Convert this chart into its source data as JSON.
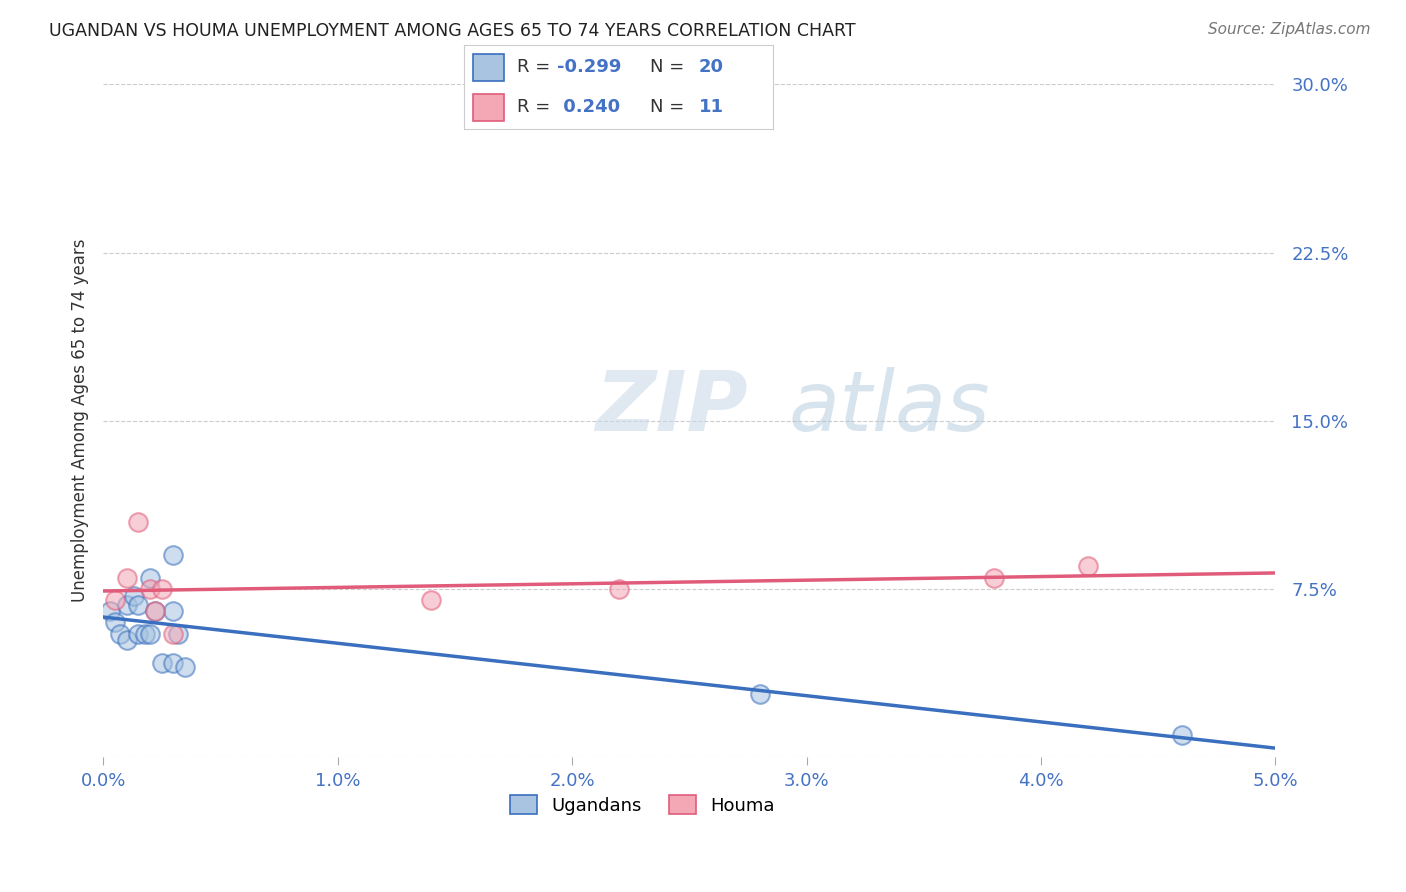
{
  "title": "UGANDAN VS HOUMA UNEMPLOYMENT AMONG AGES 65 TO 74 YEARS CORRELATION CHART",
  "source": "Source: ZipAtlas.com",
  "ylabel": "Unemployment Among Ages 65 to 74 years",
  "xlim": [
    0.0,
    0.05
  ],
  "ylim": [
    0.0,
    0.3
  ],
  "xticks": [
    0.0,
    0.01,
    0.02,
    0.03,
    0.04,
    0.05
  ],
  "yticks": [
    0.0,
    0.075,
    0.15,
    0.225,
    0.3
  ],
  "ytick_labels": [
    "",
    "7.5%",
    "15.0%",
    "22.5%",
    "30.0%"
  ],
  "xtick_labels": [
    "0.0%",
    "1.0%",
    "2.0%",
    "3.0%",
    "4.0%",
    "5.0%"
  ],
  "ugandan_x": [
    0.0003,
    0.0005,
    0.0007,
    0.001,
    0.001,
    0.0013,
    0.0015,
    0.0015,
    0.0018,
    0.002,
    0.002,
    0.0022,
    0.0025,
    0.003,
    0.003,
    0.003,
    0.0032,
    0.0035,
    0.028,
    0.046
  ],
  "ugandan_y": [
    0.065,
    0.06,
    0.055,
    0.068,
    0.052,
    0.072,
    0.055,
    0.068,
    0.055,
    0.08,
    0.055,
    0.065,
    0.042,
    0.09,
    0.065,
    0.042,
    0.055,
    0.04,
    0.028,
    0.01
  ],
  "houma_x": [
    0.0005,
    0.001,
    0.0015,
    0.002,
    0.0022,
    0.0025,
    0.003,
    0.014,
    0.022,
    0.038,
    0.042
  ],
  "houma_y": [
    0.07,
    0.08,
    0.105,
    0.075,
    0.065,
    0.075,
    0.055,
    0.07,
    0.075,
    0.08,
    0.085
  ],
  "ugandan_color": "#a8c4e0",
  "houma_color": "#f4a7b5",
  "ugandan_line_color": "#3a6fbf",
  "houma_line_color": "#e05c7a",
  "ugandan_R": -0.299,
  "ugandan_N": 20,
  "houma_R": 0.24,
  "houma_N": 11,
  "grid_color": "#cccccc",
  "background_color": "#ffffff",
  "title_color": "#222222",
  "axis_label_color": "#333333",
  "tick_color_y_right": "#4472c4",
  "tick_color_x": "#4472c4",
  "source_color": "#777777",
  "scatter_size": 180,
  "scatter_alpha": 0.55,
  "scatter_lw": 1.5
}
